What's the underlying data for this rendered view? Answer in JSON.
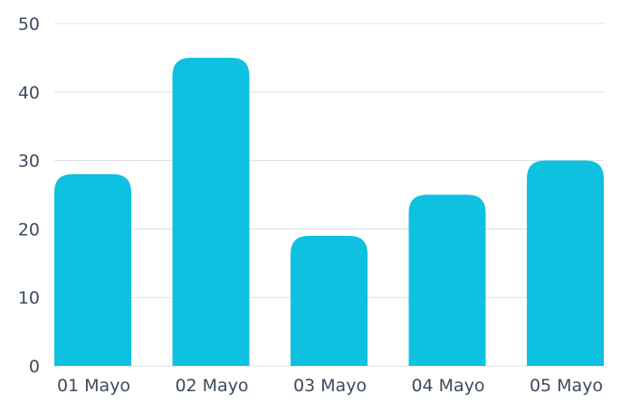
{
  "chart_data": {
    "type": "bar",
    "categories": [
      "01 Mayo",
      "02 Mayo",
      "03 Mayo",
      "04 Mayo",
      "05 Mayo"
    ],
    "values": [
      28,
      45,
      19,
      25,
      30
    ],
    "title": "",
    "xlabel": "",
    "ylabel": "",
    "ylim": [
      0,
      50
    ],
    "yticks": [
      0,
      10,
      20,
      30,
      40,
      50
    ],
    "grid": true,
    "legend": "none",
    "colors": {
      "bar": "#0ec1e0",
      "grid": "#dcdfe3",
      "text": "#3c4a5c"
    }
  }
}
